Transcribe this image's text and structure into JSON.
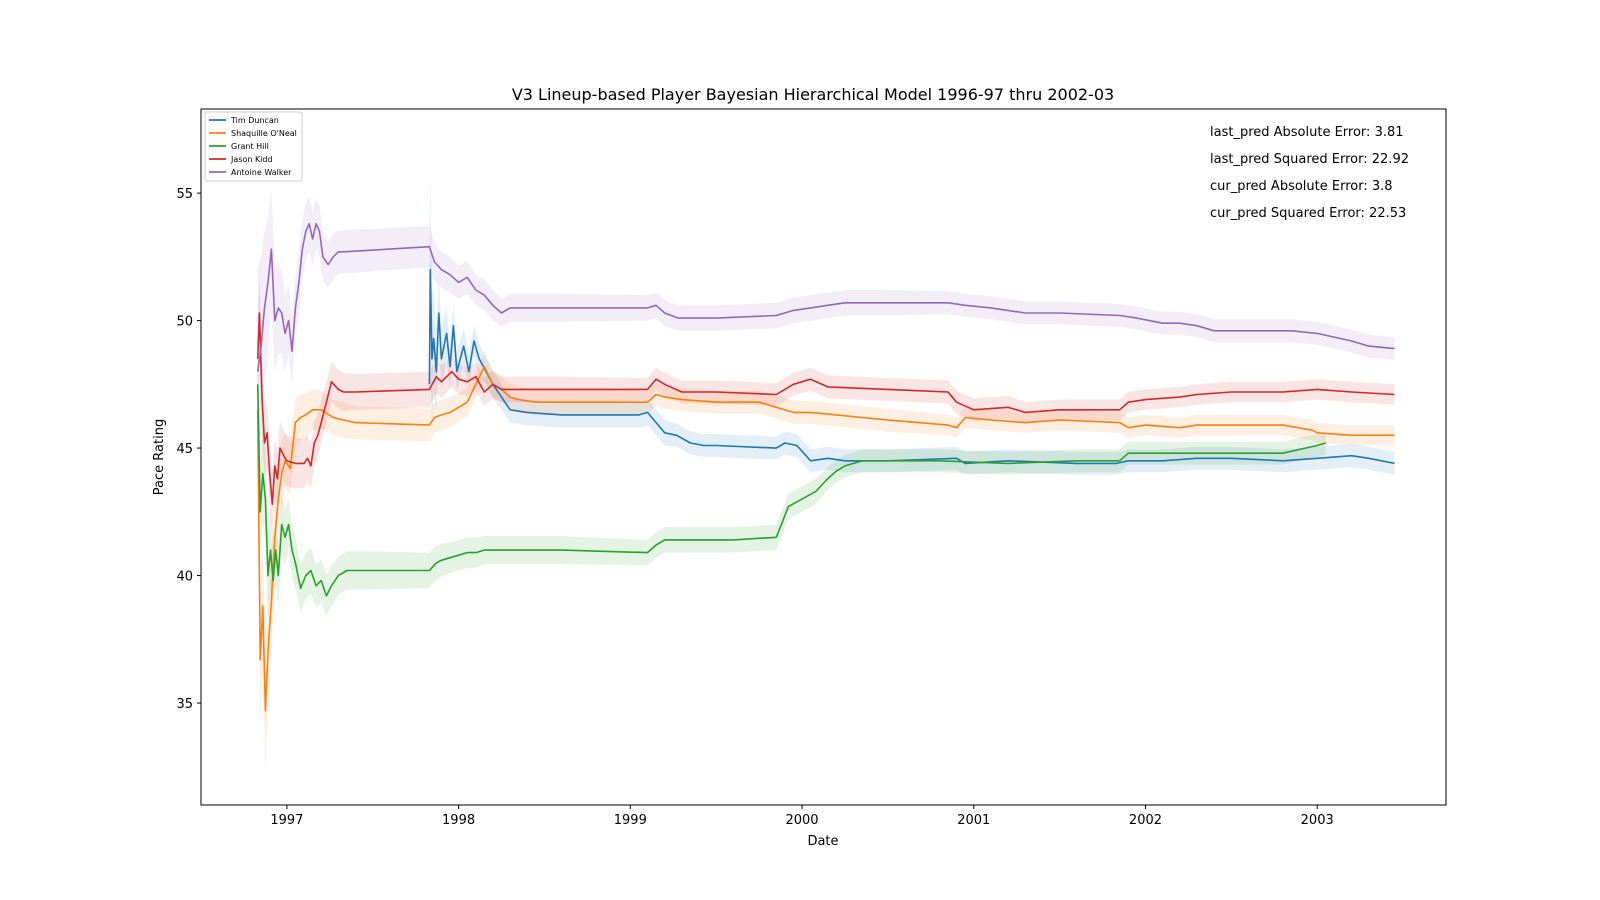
{
  "chart_data": {
    "type": "line",
    "title": "V3 Lineup-based Player Bayesian Hierarchical Model 1996-97 thru 2002-03",
    "xlabel": "Date",
    "ylabel": "Pace Rating",
    "xlim": [
      1996.5,
      2003.75
    ],
    "ylim": [
      31.0,
      58.3
    ],
    "x_ticks": [
      1997,
      1998,
      1999,
      2000,
      2001,
      2002,
      2003
    ],
    "x_tick_labels": [
      "1997",
      "1998",
      "1999",
      "2000",
      "2001",
      "2002",
      "2003"
    ],
    "y_ticks": [
      35,
      40,
      45,
      50,
      55
    ],
    "y_tick_labels": [
      "35",
      "40",
      "45",
      "50",
      "55"
    ],
    "legend_position": "top-left",
    "annotations": [
      "last_pred Absolute Error: 3.81",
      "last_pred Squared Error: 22.92",
      "cur_pred Absolute Error: 3.8",
      "cur_pred Squared Error: 22.53"
    ],
    "series": [
      {
        "name": "Tim Duncan",
        "color": "#1f77b4",
        "x": [
          1997.83,
          1997.835,
          1997.845,
          1997.855,
          1997.87,
          1997.885,
          1997.9,
          1997.915,
          1997.93,
          1997.95,
          1997.97,
          1997.99,
          1998.01,
          1998.03,
          1998.06,
          1998.09,
          1998.12,
          1998.16,
          1998.2,
          1998.25,
          1998.3,
          1998.4,
          1998.6,
          1998.8,
          1999.05,
          1999.1,
          1999.15,
          1999.2,
          1999.27,
          1999.35,
          1999.43,
          1999.5,
          1999.85,
          1999.9,
          1999.97,
          2000.05,
          2000.15,
          2000.25,
          2000.5,
          2000.9,
          2000.95,
          2001.2,
          2001.6,
          2001.83,
          2001.9,
          2002.1,
          2002.3,
          2002.5,
          2002.8,
          2003.0,
          2003.2,
          2003.3,
          2003.45
        ],
        "y": [
          47.5,
          52.0,
          48.5,
          49.3,
          48.0,
          50.3,
          48.5,
          49.0,
          49.5,
          48.2,
          49.8,
          48.0,
          48.5,
          49.0,
          48.0,
          49.2,
          48.5,
          48.0,
          47.5,
          47.0,
          46.5,
          46.4,
          46.3,
          46.3,
          46.3,
          46.4,
          46.0,
          45.6,
          45.5,
          45.2,
          45.1,
          45.1,
          45.0,
          45.2,
          45.1,
          44.5,
          44.6,
          44.5,
          44.5,
          44.6,
          44.4,
          44.5,
          44.4,
          44.4,
          44.5,
          44.5,
          44.6,
          44.6,
          44.5,
          44.6,
          44.7,
          44.6,
          44.4
        ],
        "band": [
          0.45,
          4.0,
          2.5,
          2.0,
          1.6,
          1.4,
          1.2,
          1.1,
          1.0,
          0.9,
          0.85,
          0.8,
          0.75,
          0.7,
          0.65,
          0.6,
          0.6,
          0.55,
          0.55,
          0.5,
          0.5,
          0.5,
          0.5,
          0.5,
          0.5,
          0.5,
          0.5,
          0.5,
          0.45,
          0.45,
          0.45,
          0.45,
          0.45,
          0.45,
          0.45,
          0.45,
          0.45,
          0.45,
          0.45,
          0.45,
          0.45,
          0.45,
          0.45,
          0.45,
          0.45,
          0.45,
          0.45,
          0.45,
          0.45,
          0.45,
          0.45,
          0.45,
          0.45
        ]
      },
      {
        "name": "Shaquille O'Neal",
        "color": "#ff7f0e",
        "x": [
          1996.83,
          1996.845,
          1996.86,
          1996.875,
          1996.89,
          1996.91,
          1996.93,
          1996.95,
          1996.97,
          1996.99,
          1997.02,
          1997.05,
          1997.08,
          1997.11,
          1997.15,
          1997.2,
          1997.27,
          1997.33,
          1997.4,
          1997.83,
          1997.86,
          1997.9,
          1997.95,
          1998.0,
          1998.05,
          1998.1,
          1998.15,
          1998.2,
          1998.25,
          1998.3,
          1998.35,
          1998.45,
          1998.7,
          1999.1,
          1999.15,
          1999.2,
          1999.3,
          1999.5,
          1999.75,
          1999.85,
          1999.95,
          2000.05,
          2000.2,
          2000.35,
          2000.5,
          2000.85,
          2000.9,
          2000.95,
          2001.1,
          2001.3,
          2001.5,
          2001.85,
          2001.9,
          2002.0,
          2002.2,
          2002.3,
          2002.5,
          2002.8,
          2002.97,
          2003.0,
          2003.2,
          2003.45
        ],
        "y": [
          46.5,
          36.7,
          38.8,
          34.7,
          37.0,
          39.0,
          41.5,
          43.0,
          44.0,
          44.5,
          44.2,
          46.0,
          46.2,
          46.3,
          46.5,
          46.5,
          46.2,
          46.1,
          46.0,
          45.9,
          46.2,
          46.3,
          46.4,
          46.6,
          46.8,
          47.5,
          48.2,
          47.5,
          47.3,
          47.0,
          46.9,
          46.8,
          46.8,
          46.8,
          47.1,
          47.0,
          46.9,
          46.8,
          46.8,
          46.6,
          46.4,
          46.4,
          46.3,
          46.2,
          46.1,
          45.9,
          45.8,
          46.2,
          46.1,
          46.0,
          46.1,
          46.0,
          45.8,
          45.9,
          45.8,
          45.9,
          45.9,
          45.9,
          45.7,
          45.6,
          45.5,
          45.5
        ],
        "band": [
          2.0,
          2.5,
          2.4,
          2.3,
          2.1,
          1.9,
          1.7,
          1.5,
          1.3,
          1.1,
          1.0,
          0.95,
          0.9,
          0.85,
          0.8,
          0.75,
          0.7,
          0.7,
          0.65,
          0.65,
          0.6,
          0.6,
          0.6,
          0.55,
          0.55,
          0.55,
          0.55,
          0.5,
          0.5,
          0.5,
          0.5,
          0.5,
          0.5,
          0.45,
          0.45,
          0.45,
          0.45,
          0.45,
          0.45,
          0.45,
          0.45,
          0.45,
          0.45,
          0.45,
          0.45,
          0.4,
          0.4,
          0.4,
          0.4,
          0.4,
          0.4,
          0.4,
          0.4,
          0.4,
          0.4,
          0.4,
          0.4,
          0.4,
          0.4,
          0.4,
          0.4,
          0.4
        ]
      },
      {
        "name": "Grant Hill",
        "color": "#2ca02c",
        "x": [
          1996.83,
          1996.845,
          1996.86,
          1996.875,
          1996.89,
          1996.905,
          1996.92,
          1996.935,
          1996.95,
          1996.97,
          1996.99,
          1997.01,
          1997.03,
          1997.05,
          1997.08,
          1997.11,
          1997.14,
          1997.17,
          1997.2,
          1997.23,
          1997.26,
          1997.3,
          1997.35,
          1997.45,
          1997.83,
          1997.87,
          1997.9,
          1997.95,
          1998.0,
          1998.05,
          1998.1,
          1998.15,
          1998.3,
          1998.6,
          1999.1,
          1999.15,
          1999.2,
          1999.3,
          1999.6,
          1999.85,
          1999.88,
          1999.92,
          2000.0,
          2000.08,
          2000.15,
          2000.2,
          2000.25,
          2000.35,
          2000.5,
          2000.8,
          2001.2,
          2001.6,
          2001.85,
          2001.9,
          2002.0,
          2002.2,
          2002.5,
          2002.8,
          2002.93,
          2003.0,
          2003.05
        ],
        "y": [
          47.5,
          42.5,
          44.0,
          43.0,
          40.0,
          41.0,
          39.8,
          41.0,
          40.0,
          42.0,
          41.5,
          42.0,
          41.0,
          40.5,
          39.5,
          40.0,
          40.2,
          39.6,
          39.8,
          39.2,
          39.6,
          40.0,
          40.2,
          40.2,
          40.2,
          40.5,
          40.6,
          40.7,
          40.8,
          40.9,
          40.9,
          41.0,
          41.0,
          41.0,
          40.9,
          41.2,
          41.4,
          41.4,
          41.4,
          41.5,
          42.0,
          42.7,
          43.0,
          43.3,
          43.8,
          44.1,
          44.3,
          44.5,
          44.5,
          44.5,
          44.4,
          44.5,
          44.5,
          44.8,
          44.8,
          44.8,
          44.8,
          44.8,
          45.0,
          45.1,
          45.2
        ],
        "band": [
          2.0,
          2.0,
          1.9,
          1.8,
          1.7,
          1.6,
          1.5,
          1.4,
          1.3,
          1.2,
          1.1,
          1.0,
          1.0,
          1.0,
          0.95,
          0.9,
          0.9,
          0.85,
          0.85,
          0.8,
          0.8,
          0.75,
          0.75,
          0.75,
          0.7,
          0.65,
          0.65,
          0.6,
          0.6,
          0.6,
          0.6,
          0.55,
          0.55,
          0.55,
          0.5,
          0.5,
          0.5,
          0.5,
          0.5,
          0.5,
          0.5,
          0.5,
          0.5,
          0.5,
          0.45,
          0.45,
          0.45,
          0.45,
          0.45,
          0.45,
          0.45,
          0.45,
          0.45,
          0.45,
          0.45,
          0.45,
          0.45,
          0.45,
          0.45,
          0.45,
          0.45
        ]
      },
      {
        "name": "Jason Kidd",
        "color": "#d62728",
        "x": [
          1996.83,
          1996.84,
          1996.855,
          1996.87,
          1996.885,
          1996.9,
          1996.915,
          1996.93,
          1996.945,
          1996.96,
          1996.975,
          1996.99,
          1997.0,
          1997.05,
          1997.1,
          1997.12,
          1997.14,
          1997.16,
          1997.18,
          1997.2,
          1997.23,
          1997.26,
          1997.3,
          1997.33,
          1997.4,
          1997.83,
          1997.87,
          1997.9,
          1997.93,
          1997.96,
          1998.0,
          1998.05,
          1998.1,
          1998.15,
          1998.2,
          1998.25,
          1998.35,
          1998.6,
          1999.1,
          1999.15,
          1999.2,
          1999.3,
          1999.5,
          1999.85,
          1999.95,
          2000.05,
          2000.15,
          2000.5,
          2000.85,
          2000.9,
          2001.0,
          2001.2,
          2001.3,
          2001.5,
          2001.85,
          2001.9,
          2002.0,
          2002.2,
          2002.3,
          2002.5,
          2002.8,
          2003.0,
          2003.2,
          2003.45
        ],
        "y": [
          48.5,
          50.3,
          47.0,
          45.2,
          45.6,
          44.0,
          42.8,
          44.3,
          43.8,
          45.0,
          44.8,
          44.6,
          44.5,
          44.4,
          44.4,
          44.6,
          44.3,
          45.2,
          45.5,
          46.0,
          46.8,
          47.6,
          47.3,
          47.2,
          47.2,
          47.3,
          47.8,
          47.6,
          47.8,
          48.0,
          47.7,
          47.6,
          47.8,
          47.2,
          47.5,
          47.3,
          47.3,
          47.3,
          47.3,
          47.7,
          47.5,
          47.2,
          47.2,
          47.1,
          47.5,
          47.7,
          47.4,
          47.3,
          47.2,
          46.8,
          46.5,
          46.6,
          46.4,
          46.5,
          46.5,
          46.8,
          46.9,
          47.0,
          47.1,
          47.2,
          47.2,
          47.3,
          47.2,
          47.1
        ],
        "band": [
          1.5,
          1.5,
          1.4,
          1.35,
          1.3,
          1.25,
          1.2,
          1.15,
          1.1,
          1.05,
          1.0,
          1.0,
          1.0,
          1.0,
          0.95,
          0.95,
          0.9,
          0.9,
          0.85,
          0.85,
          0.8,
          0.8,
          0.75,
          0.75,
          0.7,
          0.7,
          0.65,
          0.65,
          0.6,
          0.6,
          0.6,
          0.55,
          0.55,
          0.55,
          0.55,
          0.5,
          0.5,
          0.5,
          0.45,
          0.45,
          0.45,
          0.45,
          0.45,
          0.45,
          0.45,
          0.45,
          0.45,
          0.45,
          0.45,
          0.45,
          0.45,
          0.45,
          0.4,
          0.4,
          0.4,
          0.4,
          0.4,
          0.4,
          0.4,
          0.4,
          0.4,
          0.4,
          0.4,
          0.4
        ]
      },
      {
        "name": "Antoine Walker",
        "color": "#9467bd",
        "x": [
          1996.83,
          1996.85,
          1996.87,
          1996.89,
          1996.91,
          1996.93,
          1996.95,
          1996.97,
          1996.99,
          1997.01,
          1997.03,
          1997.05,
          1997.07,
          1997.09,
          1997.11,
          1997.13,
          1997.15,
          1997.17,
          1997.19,
          1997.21,
          1997.24,
          1997.27,
          1997.3,
          1997.33,
          1997.83,
          1997.86,
          1997.9,
          1997.95,
          1998.0,
          1998.05,
          1998.1,
          1998.15,
          1998.2,
          1998.25,
          1998.3,
          1998.6,
          1999.1,
          1999.15,
          1999.2,
          1999.28,
          1999.35,
          1999.5,
          1999.85,
          1999.95,
          2000.05,
          2000.15,
          2000.25,
          2000.5,
          2000.85,
          2000.95,
          2001.1,
          2001.3,
          2001.5,
          2001.85,
          2001.95,
          2002.1,
          2002.2,
          2002.3,
          2002.4,
          2002.6,
          2002.85,
          2003.0,
          2003.2,
          2003.3,
          2003.45
        ],
        "y": [
          48.0,
          49.0,
          50.5,
          51.5,
          52.8,
          50.0,
          50.5,
          50.3,
          49.5,
          50.0,
          48.8,
          50.5,
          51.5,
          52.8,
          53.5,
          53.8,
          53.2,
          53.8,
          53.5,
          52.5,
          52.2,
          52.5,
          52.7,
          52.7,
          52.9,
          52.3,
          52.0,
          51.8,
          51.5,
          51.7,
          51.2,
          51.0,
          50.6,
          50.3,
          50.5,
          50.5,
          50.5,
          50.6,
          50.3,
          50.1,
          50.1,
          50.1,
          50.2,
          50.4,
          50.5,
          50.6,
          50.7,
          50.7,
          50.7,
          50.6,
          50.5,
          50.3,
          50.3,
          50.2,
          50.1,
          49.9,
          49.9,
          49.8,
          49.6,
          49.6,
          49.6,
          49.5,
          49.2,
          49.0,
          48.9
        ],
        "band": [
          4.0,
          3.5,
          3.0,
          2.6,
          2.3,
          2.0,
          1.8,
          1.6,
          1.5,
          1.4,
          1.3,
          1.2,
          1.2,
          1.15,
          1.1,
          1.1,
          1.05,
          1.0,
          1.0,
          0.95,
          0.9,
          0.9,
          0.85,
          0.85,
          0.8,
          0.75,
          0.7,
          0.7,
          0.65,
          0.65,
          0.6,
          0.6,
          0.6,
          0.55,
          0.55,
          0.55,
          0.5,
          0.5,
          0.5,
          0.5,
          0.5,
          0.5,
          0.5,
          0.5,
          0.5,
          0.5,
          0.5,
          0.5,
          0.45,
          0.45,
          0.45,
          0.45,
          0.45,
          0.45,
          0.45,
          0.45,
          0.45,
          0.45,
          0.45,
          0.45,
          0.45,
          0.45,
          0.45,
          0.45,
          0.45
        ]
      }
    ]
  }
}
